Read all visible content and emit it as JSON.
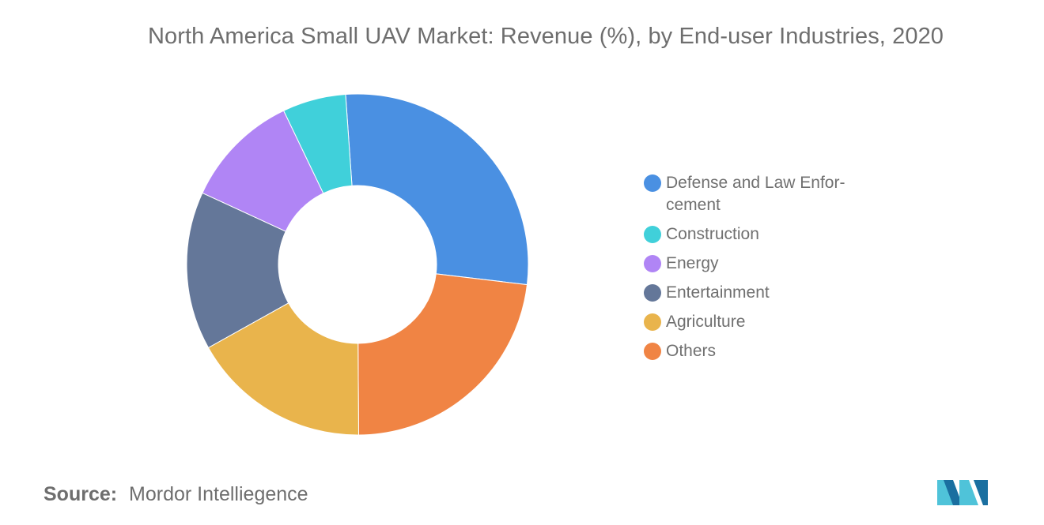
{
  "title": "North America Small UAV Market: Revenue (%), by End-user Industries, 2020",
  "source": {
    "label": "Source:",
    "value": "Mordor Intelliegence"
  },
  "logo": {
    "icon": "mordor-intelligence-logo-icon",
    "colors": [
      "#1a3a6b",
      "#4fc3d9"
    ]
  },
  "chart_data": {
    "type": "pie",
    "donut": true,
    "legend_position": "right",
    "start_angle_deg": -4,
    "categories": [
      "Defense and Law Enforcement",
      "Construction",
      "Energy",
      "Entertainment",
      "Agriculture",
      "Others"
    ],
    "legend_labels": [
      "Defense and Law Enfor-\ncement",
      "Construction",
      "Energy",
      "Entertainment",
      "Agriculture",
      "Others"
    ],
    "values": [
      28,
      6,
      11,
      15,
      17,
      23
    ],
    "slice_order": [
      "Defense and Law Enforcement",
      "Others",
      "Agriculture",
      "Entertainment",
      "Energy",
      "Construction"
    ],
    "colors": {
      "Defense and Law Enforcement": "#4a90e2",
      "Construction": "#40d0da",
      "Energy": "#b085f5",
      "Entertainment": "#647799",
      "Agriculture": "#e9b44c",
      "Others": "#f08444"
    }
  }
}
